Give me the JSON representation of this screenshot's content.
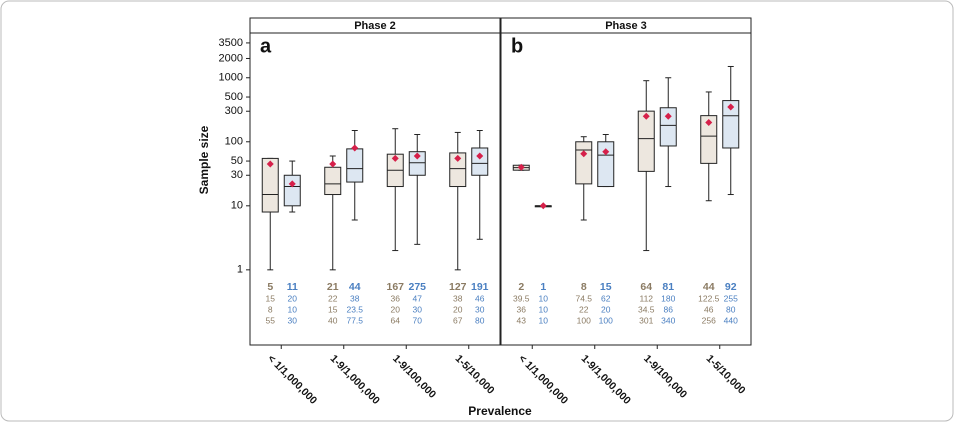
{
  "chart_data": [
    {
      "type": "box",
      "title": "Phase 2",
      "panel_label": "a",
      "ylabel": "Sample size",
      "xlabel": "Prevalence",
      "log_scale": true,
      "ylim": [
        0.067,
        5000
      ],
      "yticks": [
        1,
        10,
        30,
        50,
        100,
        300,
        500,
        1000,
        2000,
        3500
      ],
      "categories": [
        "< 1/1,000,000",
        "1-9/1,000,000",
        "1-9/100,000",
        "1-5/10,000"
      ],
      "series": [
        {
          "color": "#8b7b63",
          "fill": "#ede7df",
          "n": [
            5,
            21,
            167,
            127
          ],
          "median": [
            15,
            22,
            36,
            38
          ],
          "q1": [
            8,
            15,
            20,
            20
          ],
          "q3": [
            55,
            40,
            64,
            67
          ],
          "whisker_low": [
            1,
            1,
            2,
            1
          ],
          "whisker_high": [
            55,
            60,
            160,
            140
          ],
          "mean": [
            45,
            45,
            55,
            55
          ]
        },
        {
          "color": "#4a7fc1",
          "fill": "#dde7f2",
          "n": [
            11,
            44,
            275,
            191
          ],
          "median": [
            20,
            38,
            47,
            46
          ],
          "q1": [
            10,
            23.5,
            30,
            30
          ],
          "q3": [
            30,
            77.5,
            70,
            80
          ],
          "whisker_low": [
            8,
            6,
            2.5,
            3
          ],
          "whisker_high": [
            50,
            150,
            130,
            150
          ],
          "mean": [
            22,
            80,
            60,
            60
          ]
        }
      ]
    },
    {
      "type": "box",
      "title": "Phase 3",
      "panel_label": "b",
      "log_scale": true,
      "ylim": [
        0.067,
        5000
      ],
      "categories": [
        "< 1/1,000,000",
        "1-9/1,000,000",
        "1-9/100,000",
        "1-5/10,000"
      ],
      "series": [
        {
          "color": "#8b7b63",
          "fill": "#ede7df",
          "n": [
            2,
            8,
            64,
            44
          ],
          "median": [
            39.5,
            74.5,
            112,
            122.5
          ],
          "q1": [
            36,
            22,
            34.5,
            46
          ],
          "q3": [
            43,
            100,
            301,
            256
          ],
          "whisker_low": [
            36,
            6,
            2,
            12
          ],
          "whisker_high": [
            43,
            120,
            900,
            600
          ],
          "mean": [
            40,
            65,
            250,
            200
          ]
        },
        {
          "color": "#4a7fc1",
          "fill": "#dde7f2",
          "n": [
            1,
            15,
            81,
            92
          ],
          "median": [
            10,
            62,
            180,
            255
          ],
          "q1": [
            10,
            20,
            86,
            80
          ],
          "q3": [
            10,
            100,
            340,
            440
          ],
          "whisker_low": [
            10,
            20,
            20,
            15
          ],
          "whisker_high": [
            10,
            130,
            1000,
            1500
          ],
          "mean": [
            10,
            70,
            250,
            350
          ]
        }
      ]
    }
  ]
}
